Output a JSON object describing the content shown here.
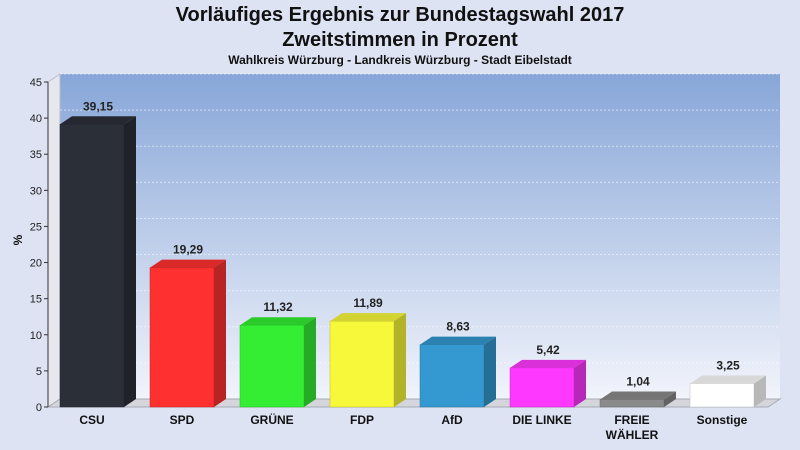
{
  "chart_data": {
    "type": "bar",
    "title": "Vorläufiges Ergebnis zur Bundestagswahl 2017",
    "subtitle": "Zweitstimmen in Prozent",
    "subsubtitle": "Wahlkreis Würzburg - Landkreis Würzburg - Stadt Eibelstadt",
    "ylabel": "%",
    "ylim": [
      0,
      45
    ],
    "yticks": [
      0,
      5,
      10,
      15,
      20,
      25,
      30,
      35,
      40,
      45
    ],
    "categories": [
      "CSU",
      "SPD",
      "GRÜNE",
      "FDP",
      "AfD",
      "DIE LINKE",
      "FREIE WÄHLER",
      "Sonstige"
    ],
    "category_lines": [
      [
        "CSU"
      ],
      [
        "SPD"
      ],
      [
        "GRÜNE"
      ],
      [
        "FDP"
      ],
      [
        "AfD"
      ],
      [
        "DIE LINKE"
      ],
      [
        "FREIE",
        "WÄHLER"
      ],
      [
        "Sonstige"
      ]
    ],
    "values": [
      39.15,
      19.29,
      11.32,
      11.89,
      8.63,
      5.42,
      1.04,
      3.25
    ],
    "value_labels": [
      "39,15",
      "19,29",
      "11,32",
      "11,89",
      "8,63",
      "5,42",
      "1,04",
      "3,25"
    ],
    "colors": [
      "#2b2f38",
      "#ff3030",
      "#33ee33",
      "#f8f83a",
      "#3399d0",
      "#ff38ff",
      "#8a8a8a",
      "#ffffff"
    ],
    "grid": true,
    "legend": "none"
  }
}
